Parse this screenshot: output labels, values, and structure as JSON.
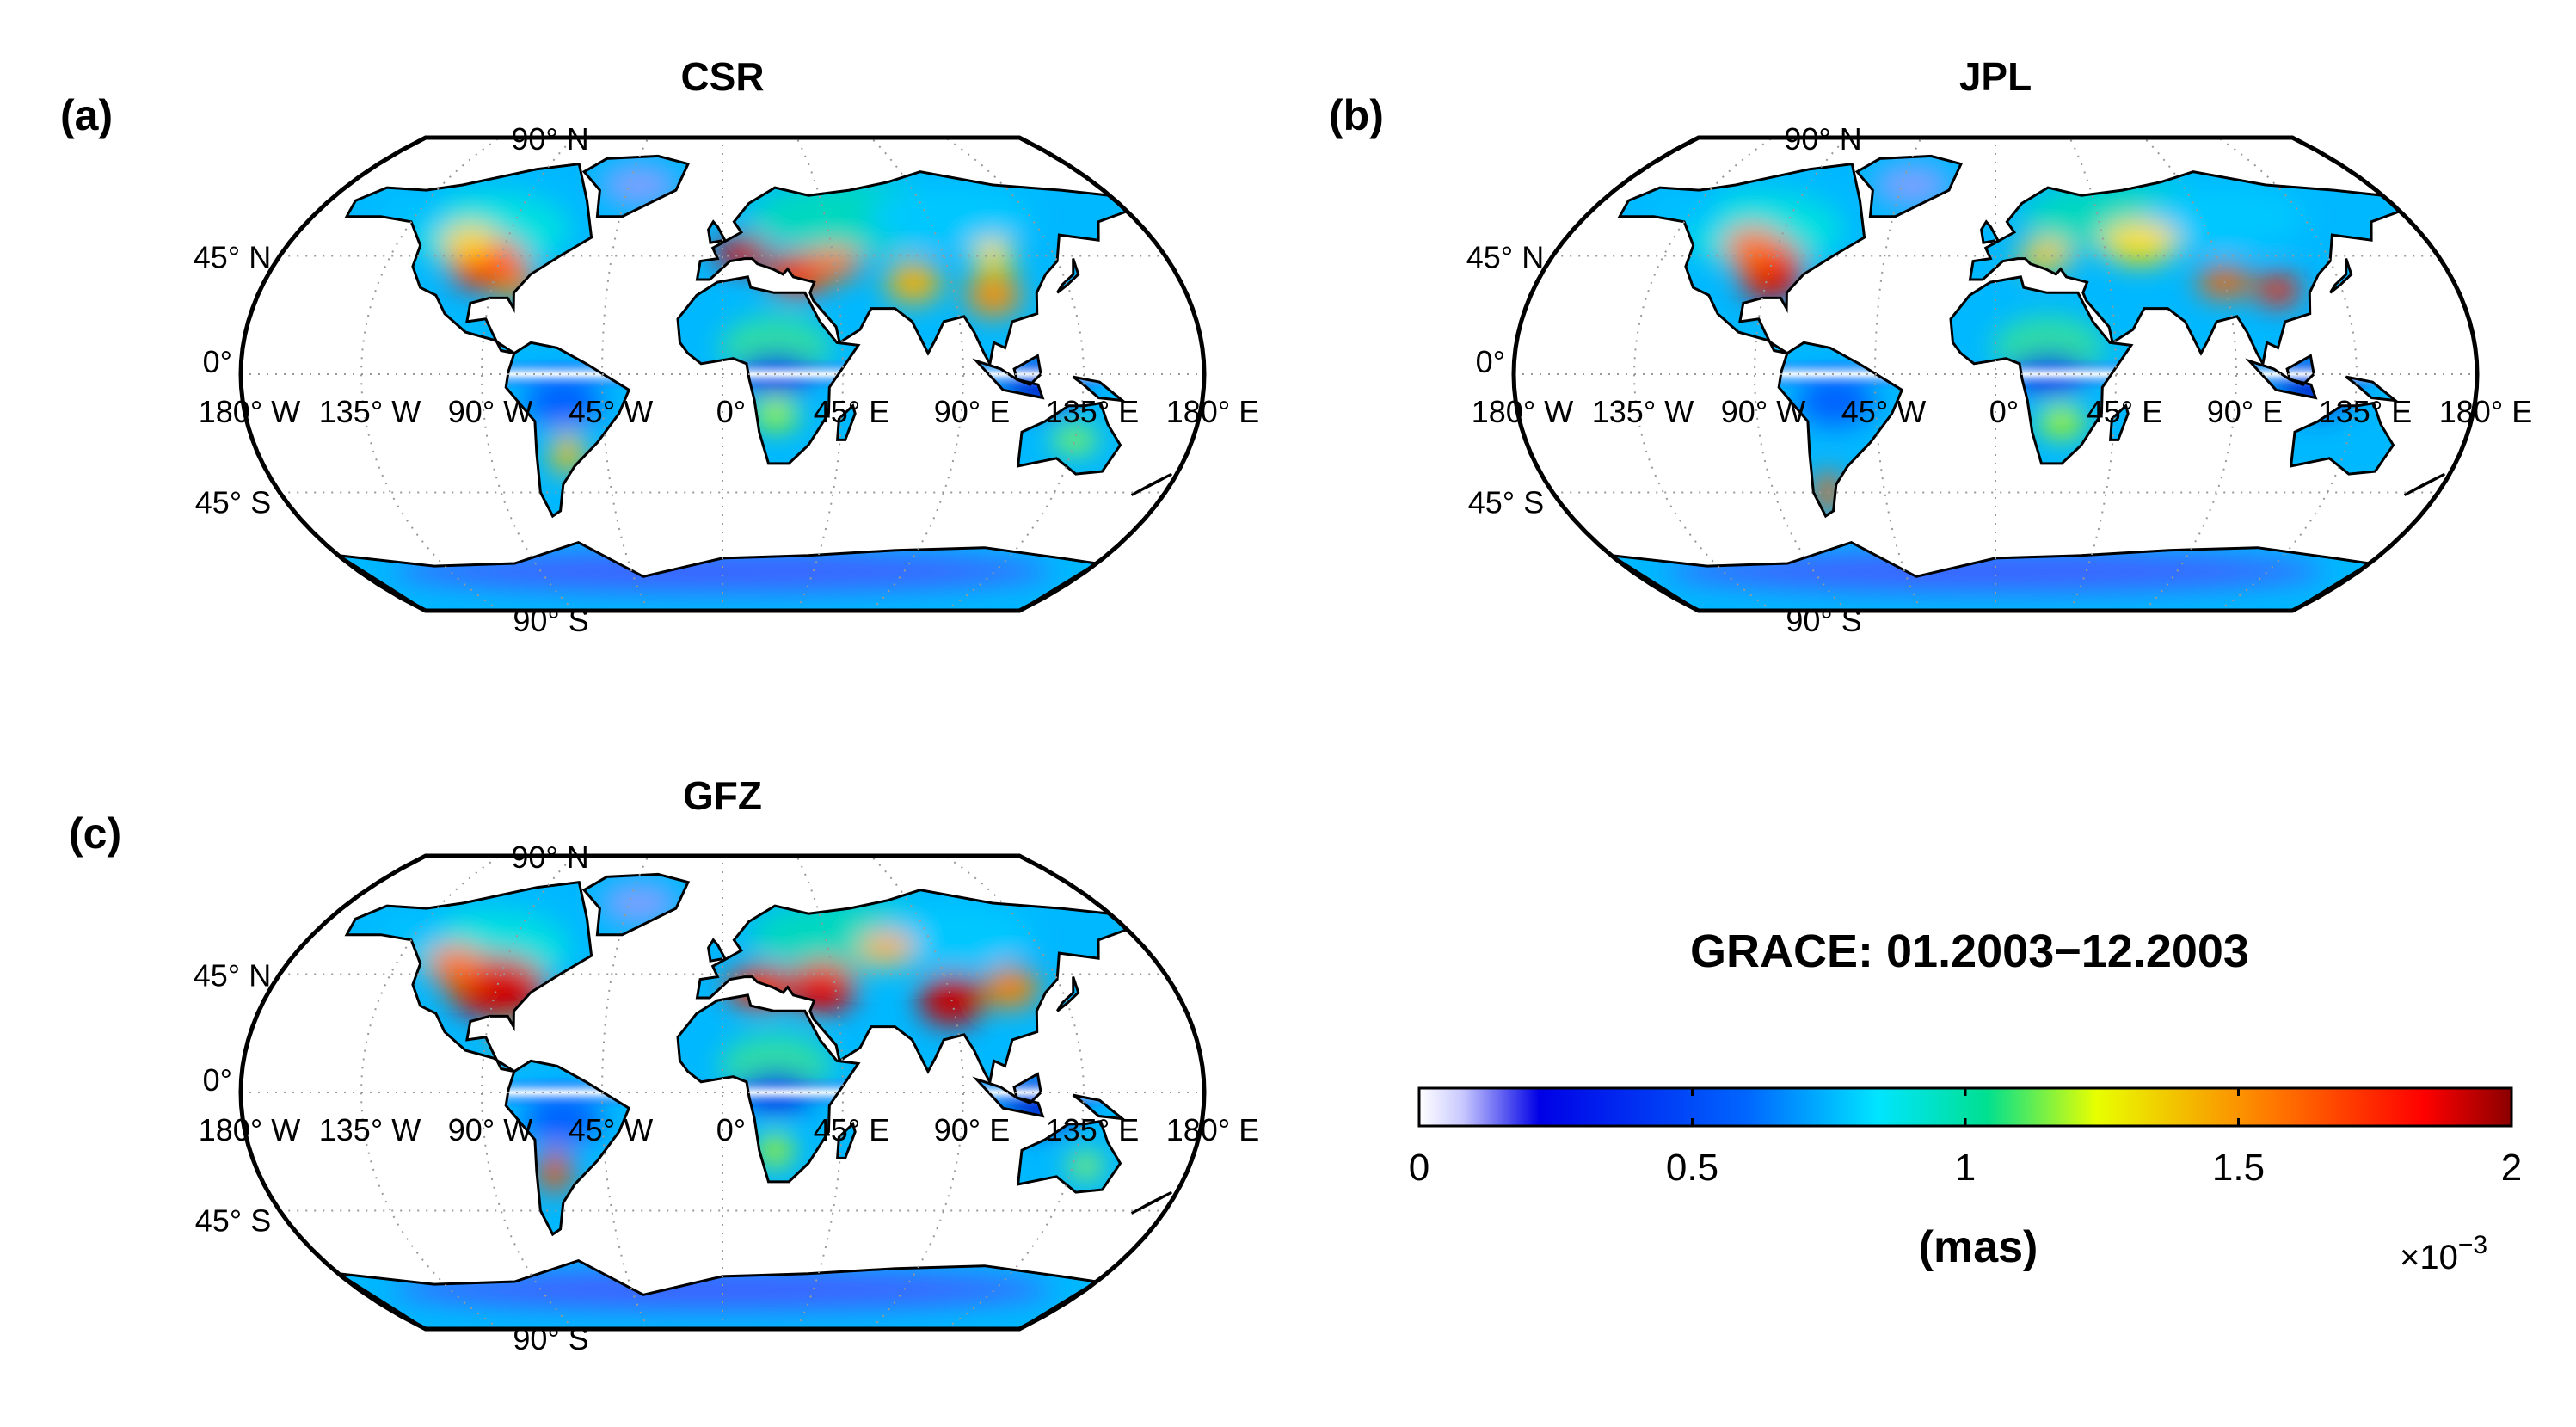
{
  "figure": {
    "panels": [
      {
        "letter": "(a)",
        "title": "CSR",
        "variant": 0
      },
      {
        "letter": "(b)",
        "title": "JPL",
        "variant": 1
      },
      {
        "letter": "(c)",
        "title": "GFZ",
        "variant": 2
      }
    ],
    "graticule": {
      "lat_labels": [
        "90° N",
        "45° N",
        "0°",
        "45° S",
        "90° S"
      ],
      "lon_labels": [
        "180° W",
        "135° W",
        "90° W",
        "45° W",
        "0°",
        "45° E",
        "90° E",
        "135° E",
        "180° E"
      ]
    },
    "colorbar": {
      "title": "GRACE: 01.2003−12.2003",
      "unit": "(mas)",
      "scale": "×10",
      "scale_exp": "−3",
      "min": 0,
      "max": 2,
      "ticks": [
        "0",
        "0.5",
        "1",
        "1.5",
        "2"
      ],
      "colormap": "jet (white at zero)"
    }
  }
}
